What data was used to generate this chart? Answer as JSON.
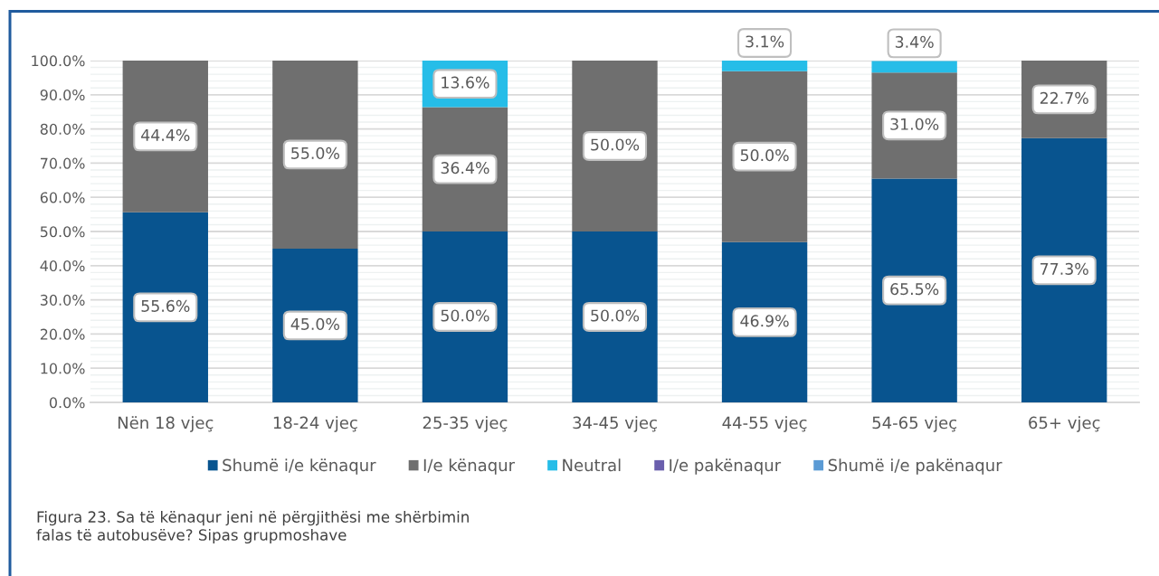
{
  "chart_data": {
    "type": "bar",
    "stacked": true,
    "categories": [
      "Nën 18 vjeç",
      "18-24 vjeç",
      "25-35 vjeç",
      "34-45 vjeç",
      "44-55 vjeç",
      "54-65 vjeç",
      "65+ vjeç"
    ],
    "series": [
      {
        "name": "Shumë i/e kënaqur",
        "color": "#08548f",
        "values": [
          55.6,
          45.0,
          50.0,
          50.0,
          46.9,
          65.5,
          77.3
        ],
        "value_labels": [
          "55.6%",
          "45.0%",
          "50.0%",
          "50.0%",
          "46.9%",
          "65.5%",
          "77.3%"
        ]
      },
      {
        "name": "I/e kënaqur",
        "color": "#6f6f6f",
        "values": [
          44.4,
          55.0,
          36.4,
          50.0,
          50.0,
          31.0,
          22.7
        ],
        "value_labels": [
          "44.4%",
          "55.0%",
          "36.4%",
          "50.0%",
          "50.0%",
          "31.0%",
          "22.7%"
        ]
      },
      {
        "name": "Neutral",
        "color": "#26bde8",
        "values": [
          null,
          null,
          13.6,
          null,
          3.1,
          3.4,
          null
        ],
        "value_labels": [
          null,
          null,
          "13.6%",
          null,
          "3.1%",
          "3.4%",
          null
        ]
      },
      {
        "name": "I/e pakënaqur",
        "color": "#6a5fad",
        "values": [
          null,
          null,
          null,
          null,
          null,
          null,
          null
        ]
      },
      {
        "name": "Shumë i/e pakënaqur",
        "color": "#5b9bd5",
        "values": [
          null,
          null,
          null,
          null,
          null,
          null,
          null
        ]
      }
    ],
    "ylim": [
      0,
      100
    ],
    "yticks": [
      {
        "value": 0,
        "label": "0.0%"
      },
      {
        "value": 2,
        "label": null
      },
      {
        "value": 4,
        "label": null
      },
      {
        "value": 6,
        "label": null
      },
      {
        "value": 8,
        "label": null
      },
      {
        "value": 10,
        "label": "10.0%"
      },
      {
        "value": 12,
        "label": null
      },
      {
        "value": 14,
        "label": null
      },
      {
        "value": 16,
        "label": null
      },
      {
        "value": 18,
        "label": null
      },
      {
        "value": 20,
        "label": "20.0%"
      },
      {
        "value": 22,
        "label": null
      },
      {
        "value": 24,
        "label": null
      },
      {
        "value": 26,
        "label": null
      },
      {
        "value": 28,
        "label": null
      },
      {
        "value": 30,
        "label": "30.0%"
      },
      {
        "value": 32,
        "label": null
      },
      {
        "value": 34,
        "label": null
      },
      {
        "value": 36,
        "label": null
      },
      {
        "value": 38,
        "label": null
      },
      {
        "value": 40,
        "label": "40.0%"
      },
      {
        "value": 42,
        "label": null
      },
      {
        "value": 44,
        "label": null
      },
      {
        "value": 46,
        "label": null
      },
      {
        "value": 48,
        "label": null
      },
      {
        "value": 50,
        "label": "50.0%"
      },
      {
        "value": 52,
        "label": null
      },
      {
        "value": 54,
        "label": null
      },
      {
        "value": 56,
        "label": null
      },
      {
        "value": 58,
        "label": null
      },
      {
        "value": 60,
        "label": "60.0%"
      },
      {
        "value": 62,
        "label": null
      },
      {
        "value": 64,
        "label": null
      },
      {
        "value": 66,
        "label": null
      },
      {
        "value": 68,
        "label": null
      },
      {
        "value": 70,
        "label": "70.0%"
      },
      {
        "value": 72,
        "label": null
      },
      {
        "value": 74,
        "label": null
      },
      {
        "value": 76,
        "label": null
      },
      {
        "value": 78,
        "label": null
      },
      {
        "value": 80,
        "label": "80.0%"
      },
      {
        "value": 82,
        "label": null
      },
      {
        "value": 84,
        "label": null
      },
      {
        "value": 86,
        "label": null
      },
      {
        "value": 88,
        "label": null
      },
      {
        "value": 90,
        "label": "90.0%"
      },
      {
        "value": 92,
        "label": null
      },
      {
        "value": 94,
        "label": null
      },
      {
        "value": 96,
        "label": null
      },
      {
        "value": 98,
        "label": null
      },
      {
        "value": 100,
        "label": "100.0%"
      }
    ],
    "grid": "y",
    "legend": "bottom",
    "annotations": [
      "Figura 23. Sa të kënaqur jeni në përgjithësi me shërbimin\nfalas të autobusëve? Sipas grupmoshave"
    ]
  }
}
